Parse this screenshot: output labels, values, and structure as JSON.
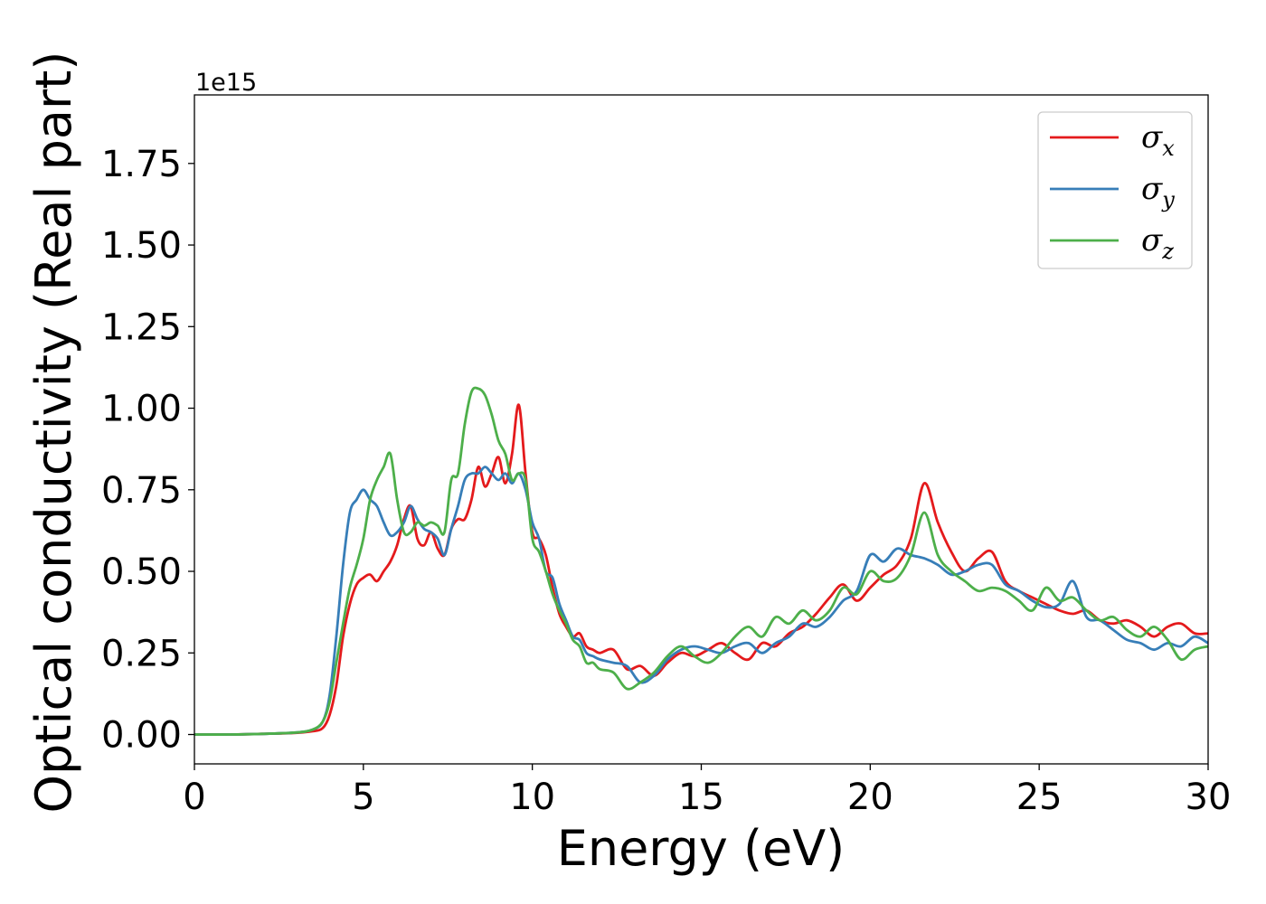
{
  "chart_data": {
    "type": "line",
    "title": "",
    "xlabel": "Energy (eV)",
    "ylabel": "Optical conductivity (Real part)",
    "y_offset_label": "1e15",
    "xlim": [
      0,
      30
    ],
    "ylim": [
      -0.09,
      1.96
    ],
    "xticks": [
      0,
      5,
      10,
      15,
      20,
      25,
      30
    ],
    "xtick_labels": [
      "0",
      "5",
      "10",
      "15",
      "20",
      "25",
      "30"
    ],
    "yticks": [
      0.0,
      0.25,
      0.5,
      0.75,
      1.0,
      1.25,
      1.5,
      1.75
    ],
    "ytick_labels": [
      "0.00",
      "0.25",
      "0.50",
      "0.75",
      "1.00",
      "1.25",
      "1.50",
      "1.75"
    ],
    "grid": false,
    "legend_position": "top-right",
    "series": [
      {
        "name": "σx",
        "symbol": "σ",
        "subscript": "x",
        "color": "#e41a1c",
        "x": [
          0,
          1,
          2,
          3,
          3.5,
          3.8,
          4.0,
          4.2,
          4.4,
          4.6,
          4.8,
          5.0,
          5.2,
          5.4,
          5.6,
          5.8,
          6.0,
          6.2,
          6.4,
          6.6,
          6.8,
          7.0,
          7.2,
          7.4,
          7.6,
          7.8,
          8.0,
          8.2,
          8.4,
          8.6,
          8.8,
          9.0,
          9.2,
          9.4,
          9.6,
          9.8,
          10.0,
          10.2,
          10.4,
          10.6,
          10.8,
          11.0,
          11.2,
          11.4,
          11.6,
          11.8,
          12.0,
          12.4,
          12.8,
          13.2,
          13.6,
          14.0,
          14.4,
          14.8,
          15.2,
          15.6,
          16.0,
          16.4,
          16.8,
          17.2,
          17.6,
          18.0,
          18.4,
          18.8,
          19.2,
          19.6,
          20.0,
          20.4,
          20.8,
          21.2,
          21.6,
          22.0,
          22.4,
          22.8,
          23.2,
          23.6,
          24.0,
          24.4,
          24.8,
          25.2,
          25.6,
          26.0,
          26.4,
          26.8,
          27.2,
          27.6,
          28.0,
          28.4,
          28.8,
          29.2,
          29.6,
          30.0
        ],
        "y": [
          0.0,
          0.0,
          0.002,
          0.005,
          0.01,
          0.02,
          0.06,
          0.15,
          0.3,
          0.4,
          0.46,
          0.48,
          0.49,
          0.47,
          0.5,
          0.53,
          0.58,
          0.66,
          0.7,
          0.6,
          0.58,
          0.62,
          0.57,
          0.55,
          0.63,
          0.66,
          0.66,
          0.72,
          0.82,
          0.76,
          0.8,
          0.85,
          0.77,
          0.86,
          1.01,
          0.8,
          0.62,
          0.6,
          0.55,
          0.45,
          0.37,
          0.33,
          0.3,
          0.31,
          0.27,
          0.26,
          0.25,
          0.26,
          0.2,
          0.21,
          0.18,
          0.22,
          0.25,
          0.24,
          0.26,
          0.28,
          0.25,
          0.23,
          0.28,
          0.27,
          0.31,
          0.33,
          0.37,
          0.42,
          0.46,
          0.41,
          0.45,
          0.49,
          0.52,
          0.6,
          0.77,
          0.65,
          0.56,
          0.5,
          0.54,
          0.56,
          0.47,
          0.44,
          0.42,
          0.4,
          0.38,
          0.37,
          0.38,
          0.35,
          0.34,
          0.35,
          0.33,
          0.3,
          0.33,
          0.34,
          0.31,
          0.31
        ]
      },
      {
        "name": "σy",
        "symbol": "σ",
        "subscript": "y",
        "color": "#377eb8",
        "x": [
          0,
          1,
          2,
          3,
          3.5,
          3.8,
          4.0,
          4.2,
          4.4,
          4.6,
          4.8,
          5.0,
          5.2,
          5.4,
          5.6,
          5.8,
          6.0,
          6.2,
          6.4,
          6.6,
          6.8,
          7.0,
          7.2,
          7.4,
          7.6,
          7.8,
          8.0,
          8.2,
          8.4,
          8.6,
          8.8,
          9.0,
          9.2,
          9.4,
          9.6,
          9.8,
          10.0,
          10.2,
          10.4,
          10.6,
          10.8,
          11.0,
          11.2,
          11.4,
          11.6,
          11.8,
          12.0,
          12.4,
          12.8,
          13.2,
          13.6,
          14.0,
          14.4,
          14.8,
          15.2,
          15.6,
          16.0,
          16.4,
          16.8,
          17.2,
          17.6,
          18.0,
          18.4,
          18.8,
          19.2,
          19.6,
          20.0,
          20.4,
          20.8,
          21.2,
          21.6,
          22.0,
          22.4,
          22.8,
          23.2,
          23.6,
          24.0,
          24.4,
          24.8,
          25.2,
          25.6,
          26.0,
          26.4,
          26.8,
          27.2,
          27.6,
          28.0,
          28.4,
          28.8,
          29.2,
          29.6,
          30.0
        ],
        "y": [
          0.0,
          0.0,
          0.002,
          0.006,
          0.015,
          0.04,
          0.12,
          0.3,
          0.52,
          0.68,
          0.72,
          0.75,
          0.72,
          0.7,
          0.65,
          0.61,
          0.62,
          0.65,
          0.7,
          0.66,
          0.63,
          0.62,
          0.6,
          0.55,
          0.63,
          0.7,
          0.78,
          0.8,
          0.8,
          0.82,
          0.8,
          0.78,
          0.8,
          0.77,
          0.8,
          0.75,
          0.65,
          0.6,
          0.5,
          0.48,
          0.4,
          0.35,
          0.3,
          0.29,
          0.25,
          0.24,
          0.23,
          0.22,
          0.21,
          0.16,
          0.18,
          0.23,
          0.26,
          0.27,
          0.26,
          0.25,
          0.27,
          0.28,
          0.25,
          0.28,
          0.3,
          0.34,
          0.33,
          0.36,
          0.41,
          0.44,
          0.55,
          0.53,
          0.57,
          0.55,
          0.54,
          0.52,
          0.49,
          0.5,
          0.52,
          0.52,
          0.46,
          0.44,
          0.41,
          0.39,
          0.4,
          0.47,
          0.36,
          0.35,
          0.32,
          0.29,
          0.28,
          0.26,
          0.28,
          0.27,
          0.3,
          0.28
        ]
      },
      {
        "name": "σz",
        "symbol": "σ",
        "subscript": "z",
        "color": "#4daf4a",
        "x": [
          0,
          1,
          2,
          3,
          3.5,
          3.8,
          4.0,
          4.2,
          4.4,
          4.6,
          4.8,
          5.0,
          5.2,
          5.4,
          5.6,
          5.8,
          6.0,
          6.2,
          6.4,
          6.6,
          6.8,
          7.0,
          7.2,
          7.4,
          7.6,
          7.8,
          8.0,
          8.2,
          8.4,
          8.6,
          8.8,
          9.0,
          9.2,
          9.4,
          9.6,
          9.8,
          10.0,
          10.2,
          10.4,
          10.6,
          10.8,
          11.0,
          11.2,
          11.4,
          11.6,
          11.8,
          12.0,
          12.4,
          12.8,
          13.2,
          13.6,
          14.0,
          14.4,
          14.8,
          15.2,
          15.6,
          16.0,
          16.4,
          16.8,
          17.2,
          17.6,
          18.0,
          18.4,
          18.8,
          19.2,
          19.6,
          20.0,
          20.4,
          20.8,
          21.2,
          21.6,
          22.0,
          22.4,
          22.8,
          23.2,
          23.6,
          24.0,
          24.4,
          24.8,
          25.2,
          25.6,
          26.0,
          26.4,
          26.8,
          27.2,
          27.6,
          28.0,
          28.4,
          28.8,
          29.2,
          29.6,
          30.0
        ],
        "y": [
          0.0,
          0.0,
          0.002,
          0.006,
          0.015,
          0.04,
          0.1,
          0.22,
          0.34,
          0.45,
          0.52,
          0.6,
          0.72,
          0.78,
          0.82,
          0.86,
          0.72,
          0.62,
          0.62,
          0.65,
          0.64,
          0.65,
          0.64,
          0.62,
          0.78,
          0.8,
          0.95,
          1.05,
          1.06,
          1.04,
          0.98,
          0.9,
          0.86,
          0.78,
          0.8,
          0.78,
          0.6,
          0.56,
          0.5,
          0.43,
          0.38,
          0.34,
          0.29,
          0.27,
          0.22,
          0.22,
          0.2,
          0.19,
          0.14,
          0.16,
          0.19,
          0.24,
          0.27,
          0.24,
          0.22,
          0.25,
          0.3,
          0.33,
          0.3,
          0.36,
          0.34,
          0.38,
          0.35,
          0.38,
          0.45,
          0.43,
          0.5,
          0.47,
          0.48,
          0.55,
          0.68,
          0.55,
          0.5,
          0.47,
          0.44,
          0.45,
          0.44,
          0.41,
          0.38,
          0.45,
          0.41,
          0.42,
          0.38,
          0.35,
          0.36,
          0.32,
          0.3,
          0.33,
          0.29,
          0.23,
          0.26,
          0.27
        ]
      }
    ]
  }
}
